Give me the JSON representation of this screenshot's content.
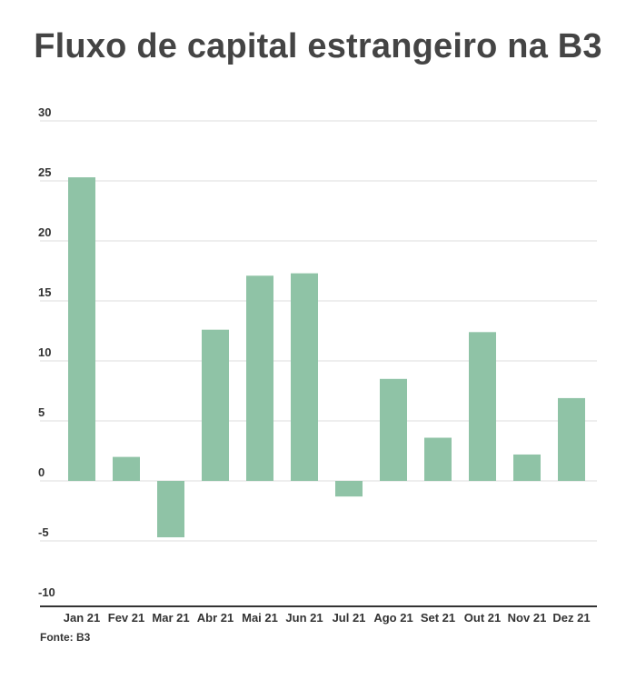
{
  "chart_data": {
    "type": "bar",
    "title": "Fluxo de capital estrangeiro na B3",
    "categories": [
      "Jan 21",
      "Fev 21",
      "Mar 21",
      "Abr 21",
      "Mai 21",
      "Jun 21",
      "Jul 21",
      "Ago 21",
      "Set 21",
      "Out 21",
      "Nov 21",
      "Dez 21"
    ],
    "values": [
      25.3,
      2.0,
      -4.7,
      12.6,
      17.1,
      17.3,
      -1.3,
      8.5,
      3.6,
      12.4,
      2.2,
      6.9
    ],
    "yticks": [
      30,
      25,
      20,
      15,
      10,
      5,
      0,
      -5,
      -10
    ],
    "ylim": [
      -10,
      30
    ],
    "xlabel": "",
    "ylabel": "",
    "grid": true,
    "bar_color": "#8fc3a6",
    "grid_color": "#dddddd",
    "axis_color": "#333333"
  },
  "source": "Fonte: B3"
}
